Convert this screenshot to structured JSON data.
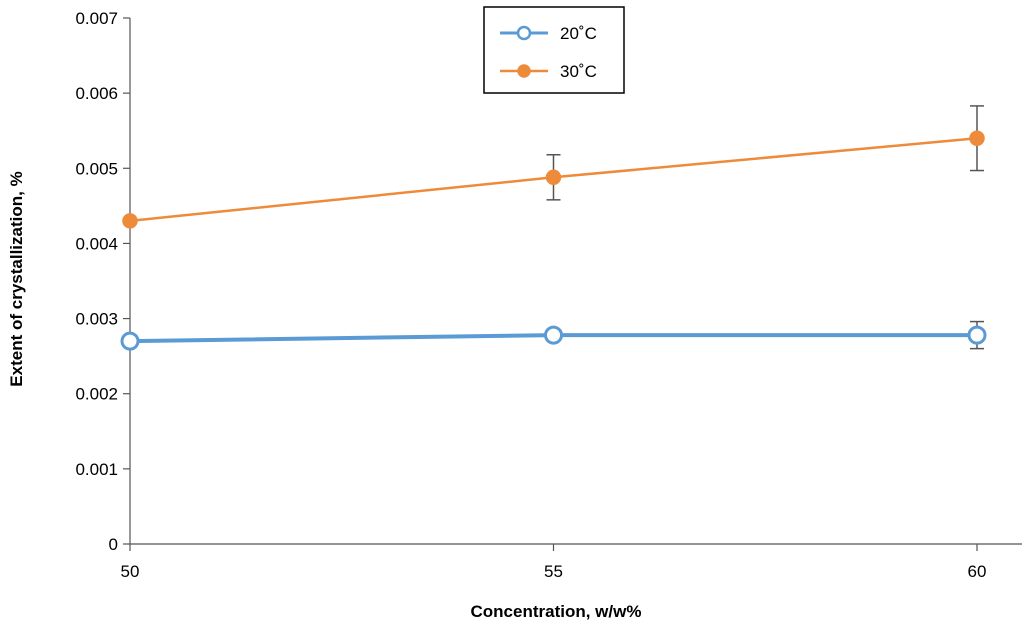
{
  "chart_data": {
    "type": "line",
    "title": "",
    "xlabel": "Concentration, w/w%",
    "ylabel": "Extent of crystallization, %",
    "x": [
      50,
      55,
      60
    ],
    "x_tick_labels": [
      "50",
      "55",
      "60"
    ],
    "xlim": [
      50,
      60
    ],
    "ylim": [
      0,
      0.007
    ],
    "y_ticks": [
      0,
      0.001,
      0.002,
      0.003,
      0.004,
      0.005,
      0.006,
      0.007
    ],
    "y_tick_labels": [
      "0",
      "0.001",
      "0.002",
      "0.003",
      "0.004",
      "0.005",
      "0.006",
      "0.007"
    ],
    "grid": false,
    "legend_position": "top-center",
    "series": [
      {
        "name": "20˚C",
        "color": "#5b9bd5",
        "marker": "open-circle",
        "values": [
          0.0027,
          0.00278,
          0.00278
        ],
        "error": [
          0.0,
          0.0,
          0.00018
        ]
      },
      {
        "name": "30˚C",
        "color": "#ed8b3b",
        "marker": "filled-circle",
        "values": [
          0.0043,
          0.00488,
          0.0054
        ],
        "error": [
          0.0,
          0.0003,
          0.00043
        ]
      }
    ]
  }
}
